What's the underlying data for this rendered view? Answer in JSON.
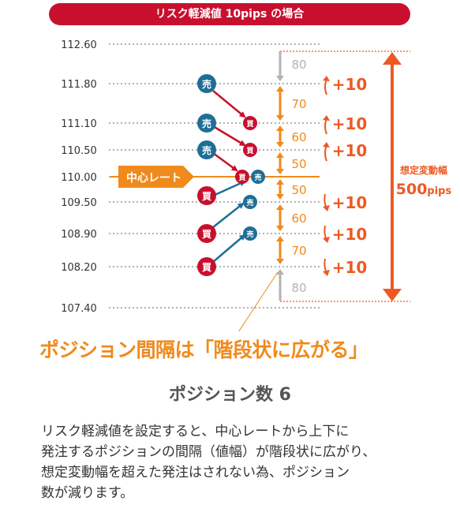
{
  "banner_title": "リスク軽減値 10pips の場合",
  "price_levels": [
    "112.60",
    "111.80",
    "111.10",
    "110.50",
    "110.00",
    "109.50",
    "108.90",
    "108.20",
    "107.40"
  ],
  "center_rate_label": "中心レート",
  "order_labels": {
    "sell": "売",
    "buy": "買"
  },
  "intervals": [
    "80",
    "70",
    "60",
    "50",
    "50",
    "60",
    "70",
    "80"
  ],
  "increments": [
    "+10",
    "+10",
    "+10",
    "+10",
    "+10",
    "+10"
  ],
  "range_label": {
    "line1": "想定変動幅",
    "value": "500",
    "unit": "pips"
  },
  "headline": "ポジション間隔は「階段状に広がる」",
  "position_count": "ポジション数 6",
  "description": "リスク軽減値を設定すると、中心レートから上下に\n発注するポジションの間隔（値幅）が階段状に広がり、\n想定変動幅を超えた発注はされない為、ポジション\n数が減ります。",
  "colors": {
    "banner": "#c8102e",
    "sell": "#1f6e96",
    "buy": "#c8102e",
    "orange": "#f08a1c",
    "range": "#ec5a24",
    "gray": "#b3b3b3"
  }
}
